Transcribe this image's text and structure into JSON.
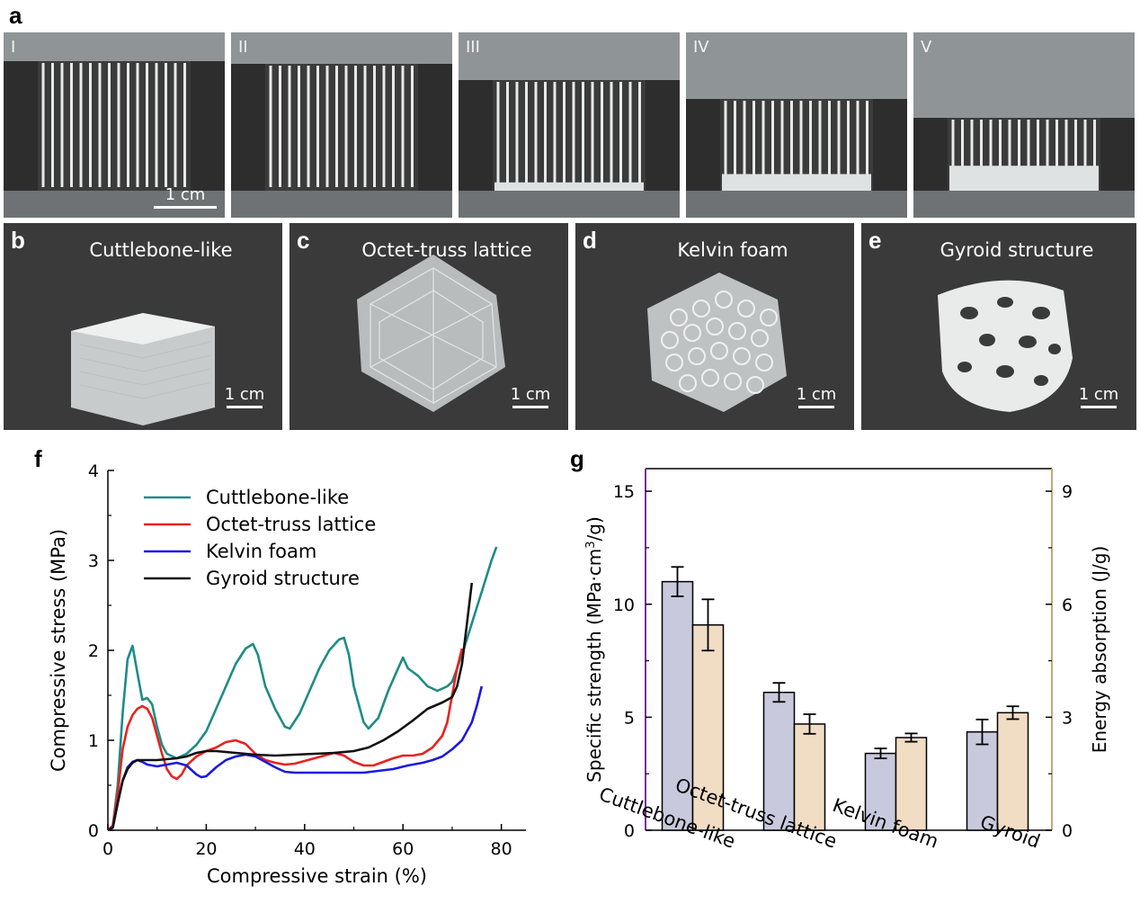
{
  "panels": {
    "a": {
      "letter": "a",
      "stages": [
        "I",
        "II",
        "III",
        "IV",
        "V"
      ],
      "scale_label": "1 cm"
    },
    "b": {
      "letter": "b",
      "title": "Cuttlebone-like",
      "scale_label": "1 cm"
    },
    "c": {
      "letter": "c",
      "title": "Octet-truss lattice",
      "scale_label": "1 cm"
    },
    "d": {
      "letter": "d",
      "title": "Kelvin foam",
      "scale_label": "1 cm"
    },
    "e": {
      "letter": "e",
      "title": "Gyroid structure",
      "scale_label": "1 cm"
    },
    "f": {
      "letter": "f"
    },
    "g": {
      "letter": "g"
    }
  },
  "colors": {
    "cuttlebone": "#1e8c86",
    "octet": "#e8231f",
    "kelvin": "#1a1ae0",
    "gyroid": "#111111",
    "bar_strength": "#c9c9dd",
    "bar_energy": "#f1dcc4",
    "left_axis": "#7b2f9e",
    "right_axis": "#c8a678"
  },
  "chart_data": [
    {
      "type": "line",
      "xlabel": "Compressive strain (%)",
      "ylabel": "Compressive stress (MPa)",
      "xlim": [
        0,
        85
      ],
      "ylim": [
        0,
        4
      ],
      "xticks": [
        "0",
        "20",
        "40",
        "60",
        "80"
      ],
      "yticks": [
        "0",
        "1",
        "2",
        "3",
        "4"
      ],
      "legend": "top-left",
      "series": [
        {
          "name": "Cuttlebone-like",
          "color_key": "cuttlebone",
          "points": [
            [
              0,
              0
            ],
            [
              1,
              0.05
            ],
            [
              2,
              0.5
            ],
            [
              3,
              1.3
            ],
            [
              4,
              1.9
            ],
            [
              5,
              2.05
            ],
            [
              6,
              1.75
            ],
            [
              7,
              1.45
            ],
            [
              8,
              1.47
            ],
            [
              9,
              1.4
            ],
            [
              10,
              1.15
            ],
            [
              11,
              0.95
            ],
            [
              12,
              0.85
            ],
            [
              14,
              0.8
            ],
            [
              16,
              0.85
            ],
            [
              18,
              0.95
            ],
            [
              20,
              1.1
            ],
            [
              22,
              1.35
            ],
            [
              24,
              1.6
            ],
            [
              26,
              1.85
            ],
            [
              28,
              2.02
            ],
            [
              29.5,
              2.07
            ],
            [
              30.5,
              1.95
            ],
            [
              32,
              1.6
            ],
            [
              34,
              1.35
            ],
            [
              36,
              1.15
            ],
            [
              37,
              1.13
            ],
            [
              39,
              1.3
            ],
            [
              41,
              1.55
            ],
            [
              43,
              1.8
            ],
            [
              45,
              2.0
            ],
            [
              47,
              2.12
            ],
            [
              48,
              2.14
            ],
            [
              49,
              1.95
            ],
            [
              50,
              1.6
            ],
            [
              52,
              1.2
            ],
            [
              53,
              1.13
            ],
            [
              55,
              1.25
            ],
            [
              57,
              1.55
            ],
            [
              59,
              1.8
            ],
            [
              60,
              1.92
            ],
            [
              61,
              1.8
            ],
            [
              63,
              1.72
            ],
            [
              65,
              1.6
            ],
            [
              67,
              1.55
            ],
            [
              69,
              1.6
            ],
            [
              70,
              1.65
            ],
            [
              72,
              1.95
            ],
            [
              74,
              2.3
            ],
            [
              76,
              2.65
            ],
            [
              78,
              3.0
            ],
            [
              79,
              3.15
            ]
          ]
        },
        {
          "name": "Octet-truss lattice",
          "color_key": "octet",
          "points": [
            [
              0,
              0
            ],
            [
              1,
              0.05
            ],
            [
              2,
              0.4
            ],
            [
              3,
              0.9
            ],
            [
              4,
              1.15
            ],
            [
              5,
              1.28
            ],
            [
              6,
              1.35
            ],
            [
              7,
              1.38
            ],
            [
              8,
              1.35
            ],
            [
              9,
              1.25
            ],
            [
              10,
              1.05
            ],
            [
              11,
              0.85
            ],
            [
              12,
              0.68
            ],
            [
              13,
              0.6
            ],
            [
              14,
              0.57
            ],
            [
              15,
              0.62
            ],
            [
              16,
              0.72
            ],
            [
              18,
              0.82
            ],
            [
              20,
              0.88
            ],
            [
              22,
              0.92
            ],
            [
              24,
              0.98
            ],
            [
              26,
              1.0
            ],
            [
              28,
              0.96
            ],
            [
              30,
              0.85
            ],
            [
              32,
              0.78
            ],
            [
              34,
              0.75
            ],
            [
              36,
              0.73
            ],
            [
              38,
              0.74
            ],
            [
              40,
              0.77
            ],
            [
              42,
              0.8
            ],
            [
              44,
              0.83
            ],
            [
              46,
              0.86
            ],
            [
              48,
              0.83
            ],
            [
              50,
              0.76
            ],
            [
              52,
              0.72
            ],
            [
              54,
              0.72
            ],
            [
              56,
              0.76
            ],
            [
              58,
              0.8
            ],
            [
              60,
              0.83
            ],
            [
              62,
              0.83
            ],
            [
              64,
              0.85
            ],
            [
              66,
              0.92
            ],
            [
              68,
              1.05
            ],
            [
              69,
              1.2
            ],
            [
              70,
              1.5
            ],
            [
              71,
              1.8
            ],
            [
              72,
              2.02
            ]
          ]
        },
        {
          "name": "Kelvin foam",
          "color_key": "kelvin",
          "points": [
            [
              0,
              0
            ],
            [
              1,
              0.03
            ],
            [
              2,
              0.3
            ],
            [
              3,
              0.55
            ],
            [
              4,
              0.7
            ],
            [
              5,
              0.76
            ],
            [
              6,
              0.78
            ],
            [
              7,
              0.76
            ],
            [
              8,
              0.73
            ],
            [
              10,
              0.71
            ],
            [
              12,
              0.73
            ],
            [
              14,
              0.75
            ],
            [
              16,
              0.72
            ],
            [
              18,
              0.62
            ],
            [
              19,
              0.59
            ],
            [
              20,
              0.6
            ],
            [
              22,
              0.7
            ],
            [
              24,
              0.78
            ],
            [
              26,
              0.82
            ],
            [
              28,
              0.84
            ],
            [
              30,
              0.82
            ],
            [
              32,
              0.76
            ],
            [
              34,
              0.7
            ],
            [
              36,
              0.65
            ],
            [
              38,
              0.64
            ],
            [
              40,
              0.64
            ],
            [
              44,
              0.64
            ],
            [
              48,
              0.64
            ],
            [
              52,
              0.64
            ],
            [
              55,
              0.66
            ],
            [
              58,
              0.68
            ],
            [
              61,
              0.72
            ],
            [
              64,
              0.75
            ],
            [
              66,
              0.78
            ],
            [
              68,
              0.82
            ],
            [
              70,
              0.9
            ],
            [
              72,
              1.0
            ],
            [
              74,
              1.2
            ],
            [
              75,
              1.38
            ],
            [
              76,
              1.6
            ]
          ]
        },
        {
          "name": "Gyroid structure",
          "color_key": "gyroid",
          "points": [
            [
              0,
              0
            ],
            [
              1,
              0.03
            ],
            [
              2,
              0.3
            ],
            [
              3,
              0.55
            ],
            [
              4,
              0.68
            ],
            [
              5,
              0.75
            ],
            [
              6,
              0.78
            ],
            [
              7,
              0.78
            ],
            [
              8,
              0.78
            ],
            [
              10,
              0.78
            ],
            [
              12,
              0.79
            ],
            [
              14,
              0.8
            ],
            [
              16,
              0.82
            ],
            [
              18,
              0.86
            ],
            [
              20,
              0.88
            ],
            [
              22,
              0.88
            ],
            [
              24,
              0.87
            ],
            [
              26,
              0.86
            ],
            [
              30,
              0.84
            ],
            [
              34,
              0.83
            ],
            [
              38,
              0.84
            ],
            [
              42,
              0.85
            ],
            [
              46,
              0.86
            ],
            [
              50,
              0.88
            ],
            [
              53,
              0.92
            ],
            [
              56,
              1.0
            ],
            [
              59,
              1.1
            ],
            [
              62,
              1.22
            ],
            [
              65,
              1.35
            ],
            [
              68,
              1.42
            ],
            [
              70,
              1.48
            ],
            [
              71,
              1.6
            ],
            [
              72,
              1.85
            ],
            [
              73,
              2.3
            ],
            [
              74,
              2.75
            ]
          ]
        }
      ]
    },
    {
      "type": "bar",
      "categories": [
        "Cuttlebone-like",
        "Octet-truss lattice",
        "Kelvin foam",
        "Gyroid"
      ],
      "ylabel": "Specific strength (MPa·cm³/g)",
      "ylabel_parts": [
        "Specific strength (MPa·cm",
        "3",
        "/g)"
      ],
      "y2label": "Energy absorption (J/g)",
      "ylim": [
        0,
        16
      ],
      "y2lim": [
        0,
        9.6
      ],
      "yticks": [
        "0",
        "5",
        "10",
        "15"
      ],
      "y2ticks": [
        "0",
        "3",
        "6",
        "9"
      ],
      "series": [
        {
          "name": "Specific strength",
          "axis": "left",
          "color_key": "bar_strength",
          "values": [
            11.0,
            6.1,
            3.4,
            4.35
          ],
          "errors": [
            0.65,
            0.42,
            0.22,
            0.55
          ]
        },
        {
          "name": "Energy absorption",
          "axis": "right",
          "color_key": "bar_energy",
          "values": [
            5.45,
            2.82,
            2.46,
            3.12
          ],
          "errors": [
            0.68,
            0.26,
            0.11,
            0.17
          ]
        }
      ]
    }
  ]
}
